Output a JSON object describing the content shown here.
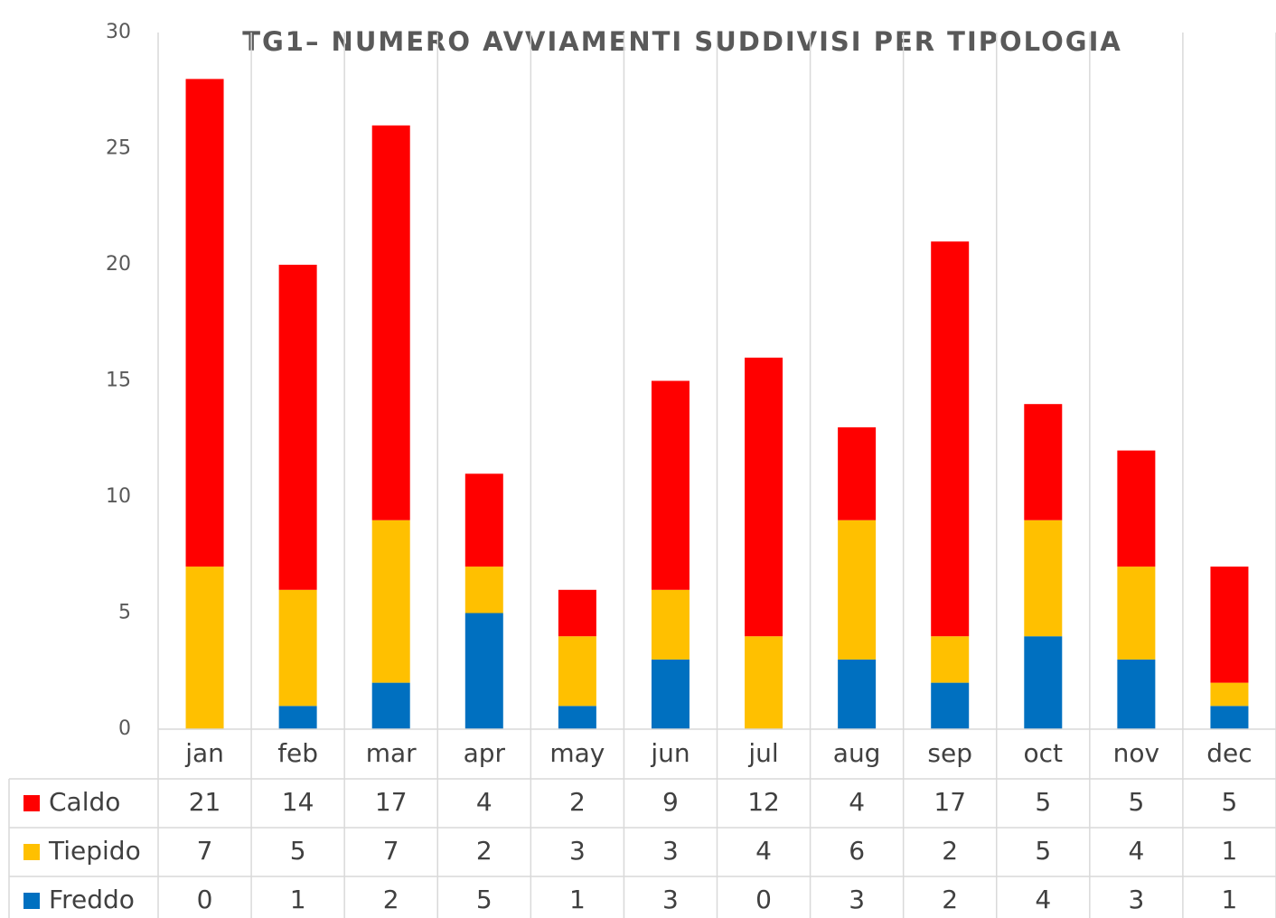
{
  "chart_data": {
    "type": "stacked-bar",
    "title": "TG1– NUMERO AVVIAMENTI SUDDIVISI PER TIPOLOGIA",
    "categories": [
      "jan",
      "feb",
      "mar",
      "apr",
      "may",
      "jun",
      "jul",
      "aug",
      "sep",
      "oct",
      "nov",
      "dec"
    ],
    "series": [
      {
        "name": "Caldo",
        "color": "#ff0000",
        "values": [
          21,
          14,
          17,
          4,
          2,
          9,
          12,
          4,
          17,
          5,
          5,
          5
        ]
      },
      {
        "name": "Tiepido",
        "color": "#ffc000",
        "values": [
          7,
          5,
          7,
          2,
          3,
          3,
          4,
          6,
          2,
          5,
          4,
          1
        ]
      },
      {
        "name": "Freddo",
        "color": "#0070c0",
        "values": [
          0,
          1,
          2,
          5,
          1,
          3,
          0,
          3,
          2,
          4,
          3,
          1
        ]
      }
    ],
    "ylim": [
      0,
      30
    ],
    "yticks": [
      0,
      5,
      10,
      15,
      20,
      25,
      30
    ],
    "grid": false
  }
}
